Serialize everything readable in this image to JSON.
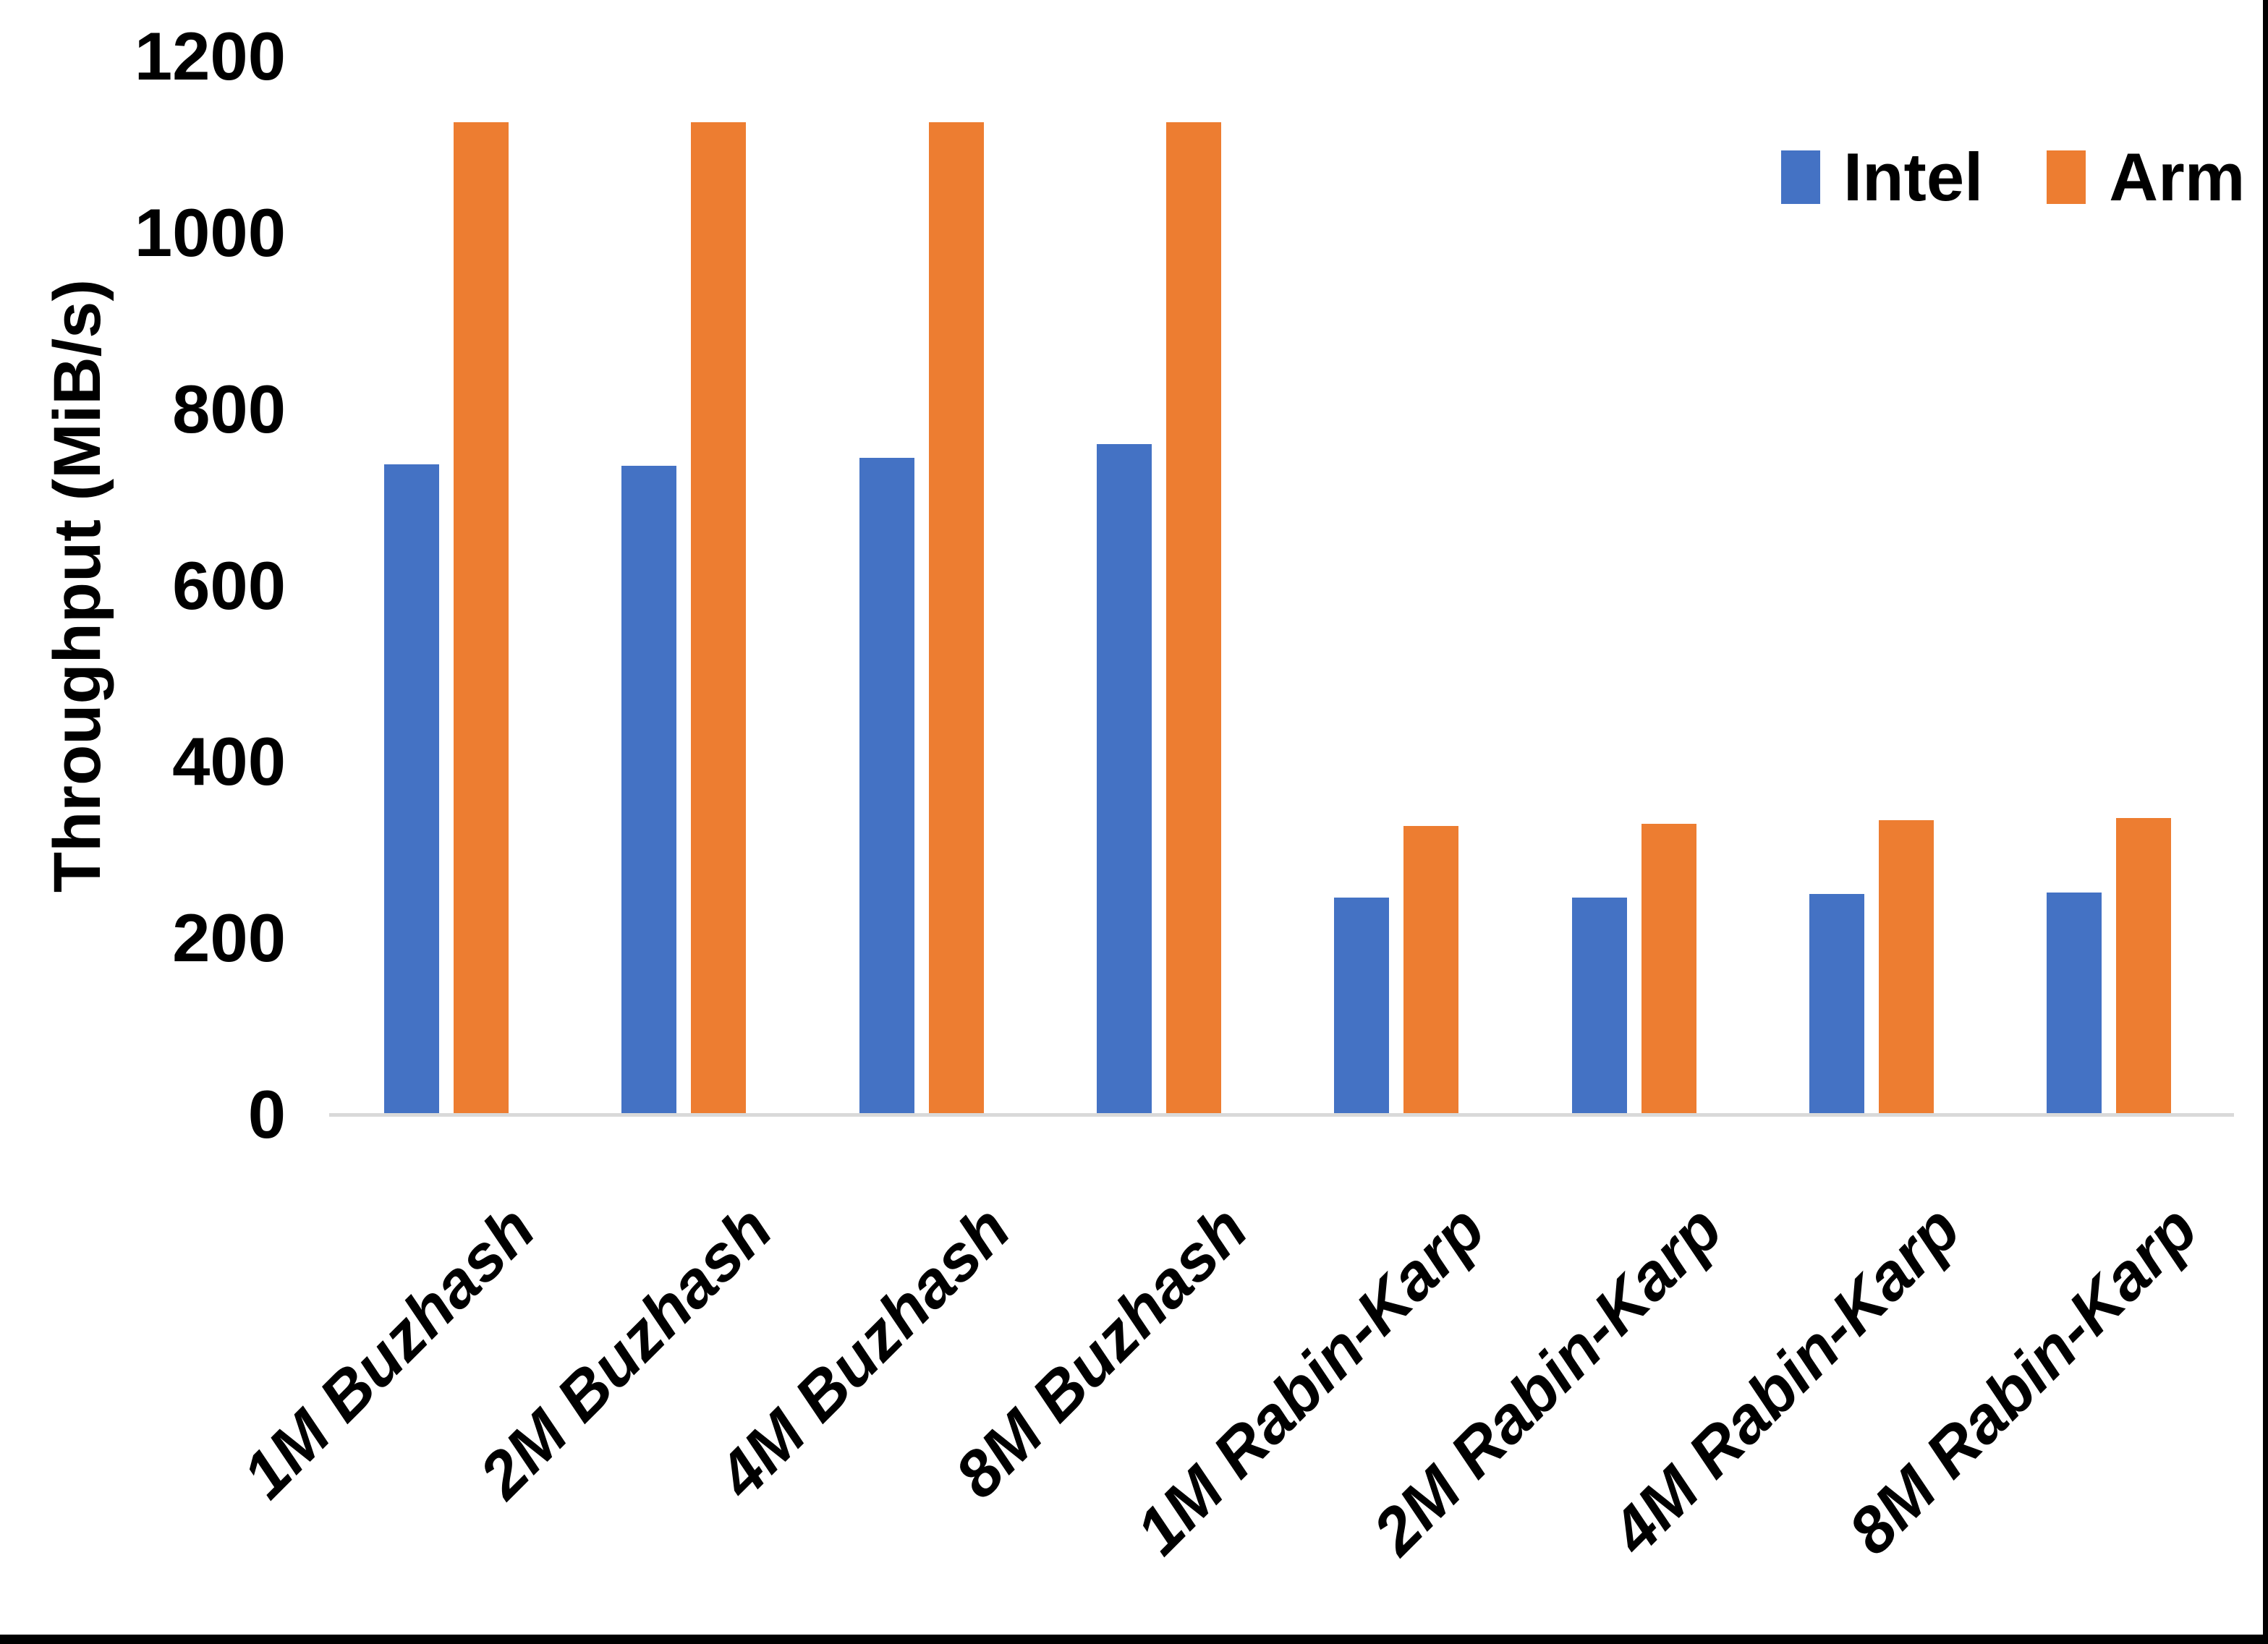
{
  "chart_data": {
    "type": "bar",
    "title": "",
    "xlabel": "",
    "ylabel": "Throughput (MiB/s)",
    "ylim": [
      0,
      1200
    ],
    "ytick_step": 200,
    "yticks": [
      0,
      200,
      400,
      600,
      800,
      1000,
      1200
    ],
    "grid": false,
    "legend_position": "top-right",
    "categories": [
      "1M Buzhash",
      "2M Buzhash",
      "4M Buzhash",
      "8M Buzhash",
      "1M Rabin-Karp",
      "2M Rabin-Karp",
      "4M Rabin-Karp",
      "8M Rabin-Karp"
    ],
    "series": [
      {
        "name": "Intel",
        "color": "#4472C4",
        "values": [
          737,
          736,
          745,
          760,
          246,
          246,
          250,
          252
        ]
      },
      {
        "name": "Arm",
        "color": "#ED7D31",
        "values": [
          1125,
          1125,
          1125,
          1125,
          327,
          330,
          334,
          336
        ]
      }
    ]
  },
  "axes": {
    "y_title": "Throughput (MiB/s)",
    "axis_line_color": "#d9d9d9"
  },
  "legend": {
    "items": [
      {
        "label": "Intel",
        "color": "#4472C4"
      },
      {
        "label": "Arm",
        "color": "#ED7D31"
      }
    ]
  }
}
